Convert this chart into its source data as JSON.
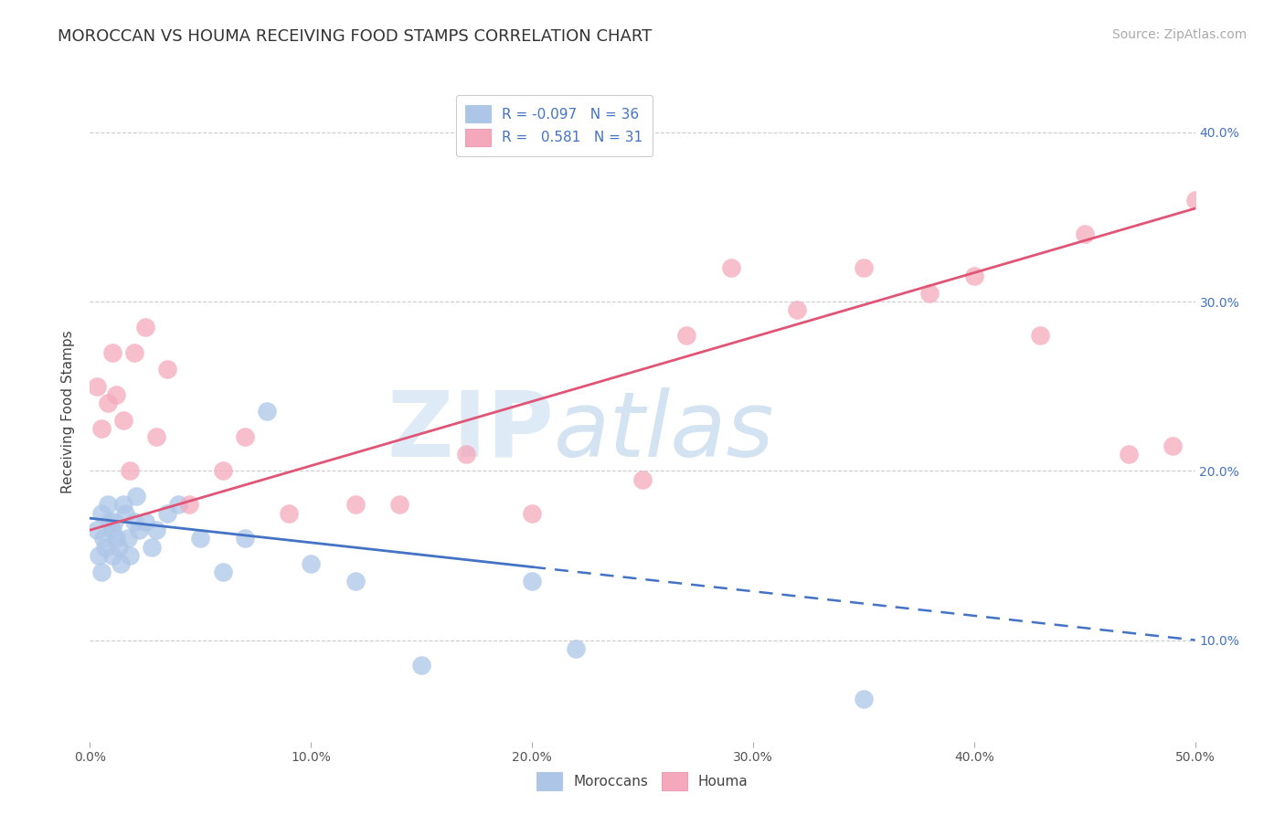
{
  "title": "MOROCCAN VS HOUMA RECEIVING FOOD STAMPS CORRELATION CHART",
  "source": "Source: ZipAtlas.com",
  "ylabel": "Receiving Food Stamps",
  "xlim": [
    0.0,
    50.0
  ],
  "ylim": [
    4.0,
    43.0
  ],
  "xticks": [
    0.0,
    10.0,
    20.0,
    30.0,
    40.0,
    50.0
  ],
  "yticks": [
    10.0,
    20.0,
    30.0,
    40.0
  ],
  "legend_r": [
    "-0.097",
    "0.581"
  ],
  "legend_n": [
    "36",
    "31"
  ],
  "moroccan_color": "#adc6e8",
  "houma_color": "#f5a8bc",
  "moroccan_line_color": "#4472c4",
  "houma_line_color": "#e05575",
  "watermark_zip": "ZIP",
  "watermark_atlas": "atlas",
  "moroccan_x": [
    0.3,
    0.4,
    0.5,
    0.5,
    0.6,
    0.7,
    0.8,
    0.9,
    1.0,
    1.0,
    1.1,
    1.2,
    1.3,
    1.4,
    1.5,
    1.6,
    1.7,
    1.8,
    2.0,
    2.1,
    2.2,
    2.5,
    2.8,
    3.0,
    3.5,
    4.0,
    5.0,
    6.0,
    7.0,
    8.0,
    10.0,
    12.0,
    15.0,
    20.0,
    22.0,
    35.0
  ],
  "moroccan_y": [
    16.5,
    15.0,
    17.5,
    14.0,
    16.0,
    15.5,
    18.0,
    17.0,
    16.5,
    15.0,
    17.0,
    16.0,
    15.5,
    14.5,
    18.0,
    17.5,
    16.0,
    15.0,
    17.0,
    18.5,
    16.5,
    17.0,
    15.5,
    16.5,
    17.5,
    18.0,
    16.0,
    14.0,
    16.0,
    23.5,
    14.5,
    13.5,
    8.5,
    13.5,
    9.5,
    6.5
  ],
  "houma_x": [
    0.3,
    0.5,
    0.8,
    1.0,
    1.2,
    1.5,
    1.8,
    2.0,
    2.5,
    3.0,
    3.5,
    4.5,
    6.0,
    7.0,
    9.0,
    12.0,
    14.0,
    17.0,
    20.0,
    25.0,
    27.0,
    29.0,
    32.0,
    35.0,
    38.0,
    40.0,
    43.0,
    45.0,
    47.0,
    49.0,
    50.0
  ],
  "houma_y": [
    25.0,
    22.5,
    24.0,
    27.0,
    24.5,
    23.0,
    20.0,
    27.0,
    28.5,
    22.0,
    26.0,
    18.0,
    20.0,
    22.0,
    17.5,
    18.0,
    18.0,
    21.0,
    17.5,
    19.5,
    28.0,
    32.0,
    29.5,
    32.0,
    30.5,
    31.5,
    28.0,
    34.0,
    21.0,
    21.5,
    36.0
  ],
  "blue_line_x0": 0.0,
  "blue_line_y0": 17.2,
  "blue_line_x1": 50.0,
  "blue_line_y1": 10.0,
  "blue_solid_end": 20.0,
  "pink_line_x0": 0.0,
  "pink_line_y0": 16.5,
  "pink_line_x1": 50.0,
  "pink_line_y1": 35.5,
  "title_fontsize": 13,
  "axis_label_fontsize": 11,
  "tick_fontsize": 10,
  "legend_fontsize": 11,
  "source_fontsize": 10
}
